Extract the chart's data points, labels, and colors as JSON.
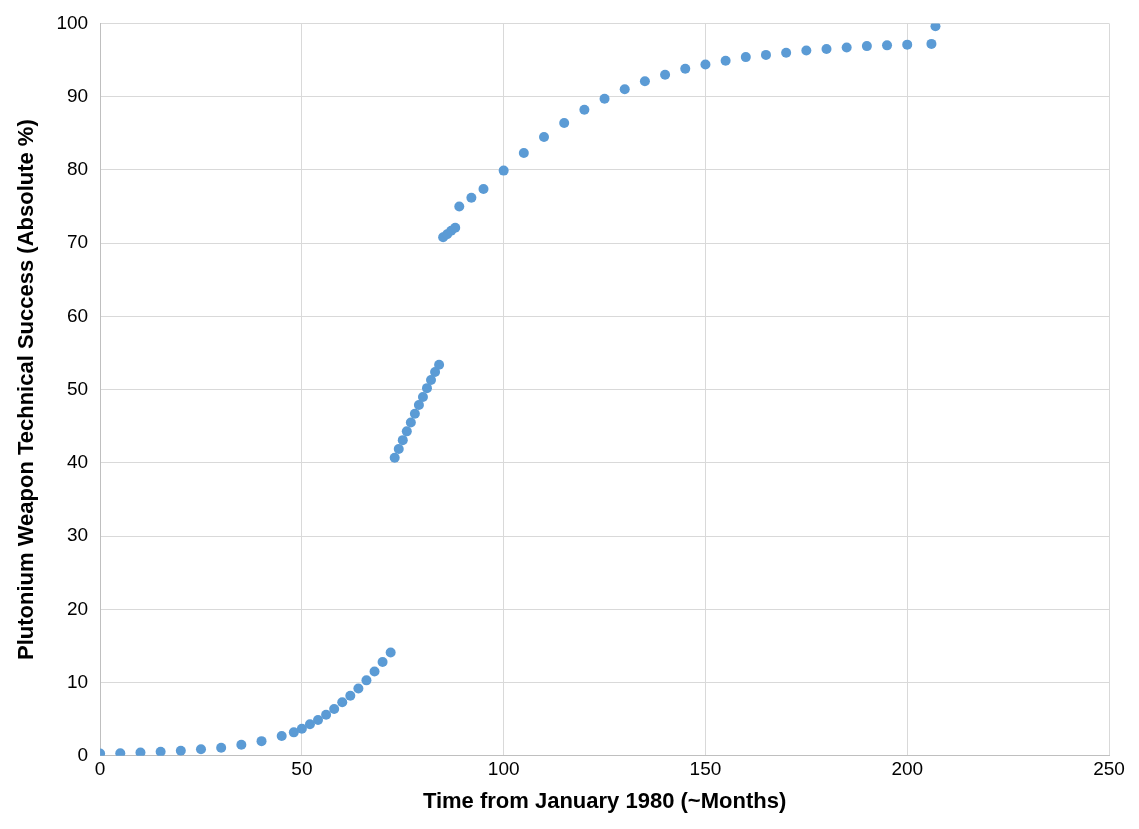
{
  "chart_data": {
    "type": "scatter",
    "xlabel": "Time from January 1980 (~Months)",
    "ylabel": "Plutonium Weapon Technical Success (Absolute %)",
    "xlim": [
      0,
      250
    ],
    "xticks": [
      0,
      50,
      100,
      150,
      200,
      250
    ],
    "ylim": [
      0,
      100
    ],
    "yticks": [
      0,
      10,
      20,
      30,
      40,
      50,
      60,
      70,
      80,
      90,
      100
    ],
    "grid": true,
    "legend": false,
    "marker": "circle",
    "series": [
      {
        "color": "#5b9bd5",
        "x": [
          0,
          5,
          10,
          15,
          20,
          25,
          30,
          35,
          40,
          45,
          48,
          50,
          52,
          54,
          56,
          58,
          60,
          62,
          64,
          66,
          68,
          70,
          72,
          73,
          74,
          75,
          76,
          77,
          78,
          79,
          80,
          81,
          82,
          83,
          84,
          85,
          86,
          87,
          88,
          89,
          92,
          95,
          100,
          105,
          110,
          115,
          120,
          125,
          130,
          135,
          140,
          145,
          150,
          155,
          160,
          165,
          170,
          175,
          180,
          185,
          190,
          195,
          200,
          206,
          207
        ],
        "values": [
          0.3,
          0.35,
          0.45,
          0.55,
          0.7,
          0.9,
          1.1,
          1.5,
          2.0,
          2.7,
          3.2,
          3.7,
          4.3,
          4.9,
          5.6,
          6.4,
          7.3,
          8.2,
          9.2,
          10.3,
          11.5,
          12.8,
          14.1,
          40.7,
          41.9,
          43.1,
          44.3,
          45.5,
          46.7,
          47.9,
          49.0,
          50.2,
          51.3,
          52.4,
          53.4,
          70.8,
          71.2,
          71.7,
          72.1,
          75.0,
          76.2,
          77.4,
          79.9,
          82.3,
          84.5,
          86.4,
          88.2,
          89.7,
          91.0,
          92.1,
          93.0,
          93.8,
          94.4,
          94.9,
          95.4,
          95.7,
          96.0,
          96.3,
          96.5,
          96.7,
          96.9,
          97.0,
          97.1,
          97.2,
          99.6
        ]
      }
    ]
  }
}
